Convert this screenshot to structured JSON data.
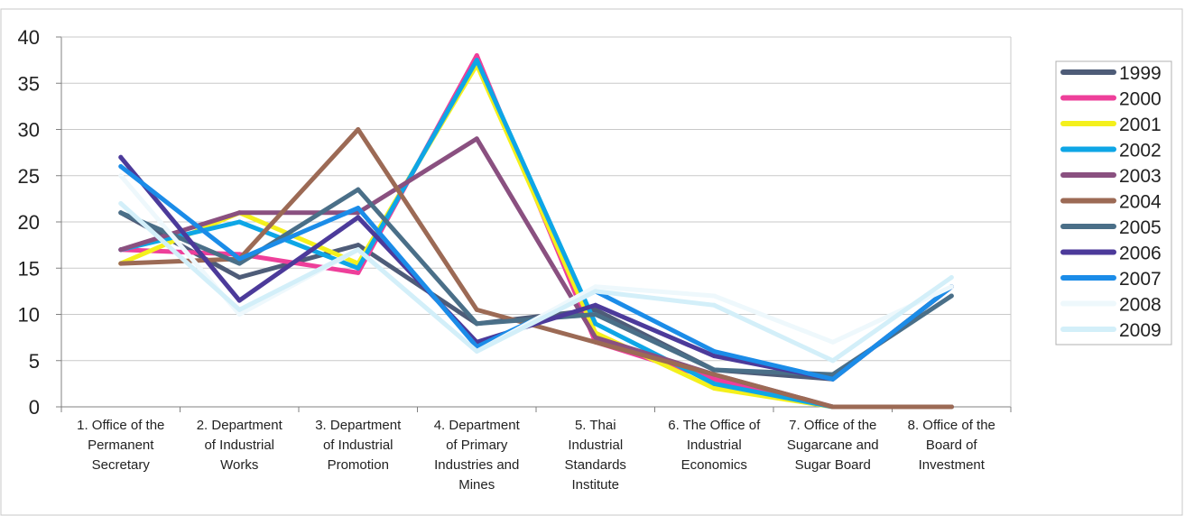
{
  "chart_data": {
    "type": "line",
    "title": "",
    "xlabel": "",
    "ylabel": "",
    "ylim": [
      0,
      40
    ],
    "yticks": [
      0,
      5,
      10,
      15,
      20,
      25,
      30,
      35,
      40
    ],
    "grid": true,
    "legend_position": "right",
    "categories": [
      "1. Office of the Permanent Secretary",
      "2. Department of Industrial Works",
      "3. Department of Industrial Promotion",
      "4. Department of Primary Industries and Mines",
      "5. Thai Industrial Standards Institute",
      "6. The Office of Industrial Economics",
      "7. Office of the Sugarcane and Sugar Board",
      "8. Office of the Board of Investment"
    ],
    "category_lines": [
      [
        "1. Office of the",
        "Permanent",
        "Secretary"
      ],
      [
        "2. Department",
        "of Industrial",
        "Works"
      ],
      [
        "3. Department",
        "of Industrial",
        "Promotion"
      ],
      [
        "4. Department",
        "of Primary",
        "Industries and",
        "Mines"
      ],
      [
        "5. Thai",
        "Industrial",
        "Standards",
        "Institute"
      ],
      [
        "6. The Office of",
        "Industrial",
        "Economics"
      ],
      [
        "7. Office of the",
        "Sugarcane and",
        "Sugar Board"
      ],
      [
        "8. Office of the",
        "Board of",
        "Investment"
      ]
    ],
    "series": [
      {
        "name": "1999",
        "color": "#4e5c78",
        "values": [
          21,
          14,
          17.5,
          9,
          10.5,
          4,
          3,
          13
        ]
      },
      {
        "name": "2000",
        "color": "#ee3f9a",
        "values": [
          17,
          16.5,
          14.5,
          38,
          7,
          3,
          0,
          0
        ]
      },
      {
        "name": "2001",
        "color": "#f4f01c",
        "values": [
          15.5,
          21,
          15.5,
          37,
          8,
          2,
          0,
          0
        ]
      },
      {
        "name": "2002",
        "color": "#0ea6e6",
        "values": [
          17,
          20,
          15,
          37.5,
          9,
          2.5,
          0,
          0
        ]
      },
      {
        "name": "2003",
        "color": "#8a5080",
        "values": [
          17,
          21,
          21,
          29,
          7.5,
          3.5,
          0,
          0
        ]
      },
      {
        "name": "2004",
        "color": "#9c6a55",
        "values": [
          15.5,
          16,
          30,
          10.5,
          7,
          3.5,
          0,
          0
        ]
      },
      {
        "name": "2005",
        "color": "#4a6f88",
        "values": [
          21,
          15.5,
          23.5,
          9,
          10,
          4,
          3.5,
          12
        ]
      },
      {
        "name": "2006",
        "color": "#4c3a9a",
        "values": [
          27,
          11.5,
          20.5,
          7,
          11,
          5.5,
          3,
          13
        ]
      },
      {
        "name": "2007",
        "color": "#1b8ce8",
        "values": [
          26,
          16,
          21.5,
          6.5,
          12.5,
          6,
          3,
          13
        ]
      },
      {
        "name": "2008",
        "color": "#eef8fc",
        "values": [
          25,
          10,
          17,
          6,
          13,
          12,
          7,
          13
        ]
      },
      {
        "name": "2009",
        "color": "#d3eff9",
        "values": [
          22,
          10.5,
          17,
          6,
          12.5,
          11,
          5,
          14
        ]
      }
    ]
  }
}
